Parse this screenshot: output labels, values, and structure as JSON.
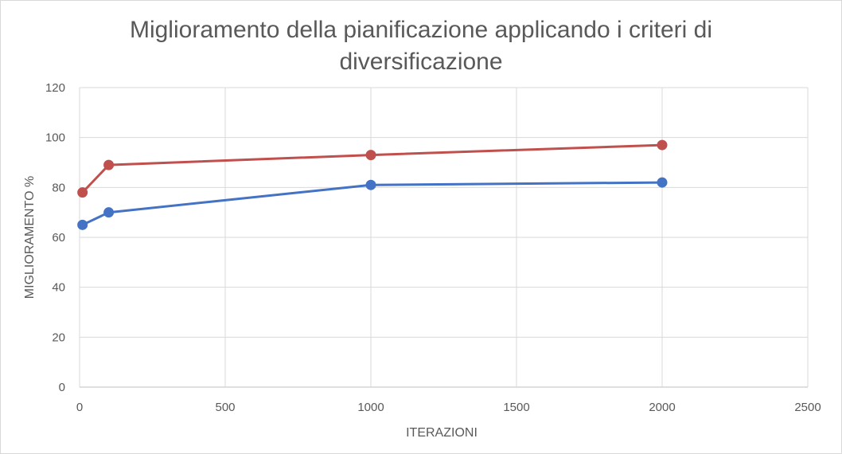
{
  "chart_data": {
    "type": "scatter",
    "title_line1": "Miglioramento della pianificazione applicando i criteri di",
    "title_line2": "diversificazione",
    "xlabel": "ITERAZIONI",
    "ylabel": "MIGLIORAMENTO %",
    "xlim": [
      0,
      2500
    ],
    "ylim": [
      0,
      120
    ],
    "x_ticks": [
      0,
      500,
      1000,
      1500,
      2000,
      2500
    ],
    "y_ticks": [
      0,
      20,
      40,
      60,
      80,
      100,
      120
    ],
    "grid": true,
    "legend": "none",
    "series": [
      {
        "color": "#4472c4",
        "x": [
          10,
          100,
          1000,
          2000
        ],
        "y": [
          65,
          70,
          81,
          82
        ]
      },
      {
        "color": "#c0504d",
        "x": [
          10,
          100,
          1000,
          2000
        ],
        "y": [
          78,
          89,
          93,
          97
        ]
      }
    ]
  }
}
